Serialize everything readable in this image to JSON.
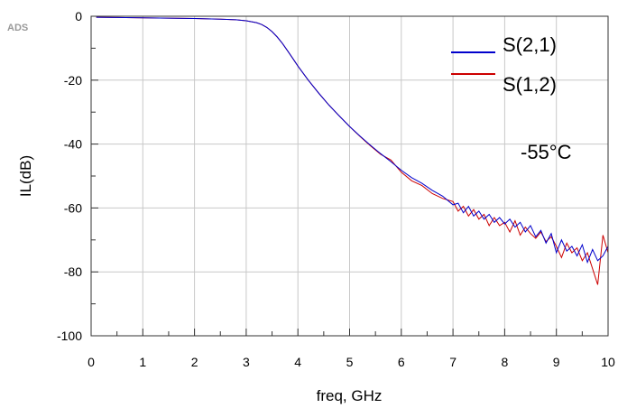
{
  "watermark": "ADS",
  "chart_data": {
    "type": "line",
    "xlabel": "freq, GHz",
    "ylabel": "IL(dB)",
    "xlim": [
      0,
      10
    ],
    "ylim": [
      -100,
      0
    ],
    "x_ticks": [
      0,
      1,
      2,
      3,
      4,
      5,
      6,
      7,
      8,
      9,
      10
    ],
    "y_ticks": [
      0,
      -20,
      -40,
      -60,
      -80,
      -100
    ],
    "grid": true,
    "legend_position": "top-right",
    "annotation": "-55°C",
    "series": [
      {
        "name": "S(2,1)",
        "color": "#0000cc",
        "x": [
          0.1,
          0.5,
          1.0,
          1.5,
          2.0,
          2.5,
          2.8,
          3.0,
          3.2,
          3.3,
          3.4,
          3.5,
          3.6,
          3.7,
          3.8,
          3.9,
          4.0,
          4.2,
          4.4,
          4.6,
          4.8,
          5.0,
          5.2,
          5.4,
          5.6,
          5.8,
          6.0,
          6.2,
          6.4,
          6.6,
          6.8,
          7.0,
          7.1,
          7.2,
          7.3,
          7.4,
          7.5,
          7.6,
          7.7,
          7.8,
          7.9,
          8.0,
          8.1,
          8.2,
          8.3,
          8.4,
          8.5,
          8.6,
          8.7,
          8.8,
          8.9,
          9.0,
          9.1,
          9.2,
          9.3,
          9.4,
          9.5,
          9.6,
          9.7,
          9.8,
          9.9,
          10.0
        ],
        "values": [
          -0.3,
          -0.4,
          -0.5,
          -0.6,
          -0.7,
          -0.9,
          -1.1,
          -1.4,
          -2.0,
          -2.6,
          -3.5,
          -4.8,
          -6.5,
          -8.5,
          -10.8,
          -13.2,
          -15.6,
          -20.0,
          -24.0,
          -27.8,
          -31.2,
          -34.5,
          -37.5,
          -40.3,
          -43.0,
          -45.5,
          -48.2,
          -50.5,
          -52.3,
          -54.5,
          -56.3,
          -59.0,
          -58.5,
          -61.5,
          -59.5,
          -62.5,
          -61.0,
          -63.5,
          -62.0,
          -64.5,
          -63.0,
          -65.0,
          -63.5,
          -66.0,
          -64.5,
          -67.5,
          -65.5,
          -69.0,
          -67.0,
          -71.0,
          -68.0,
          -74.0,
          -70.0,
          -73.5,
          -72.0,
          -75.0,
          -71.5,
          -77.0,
          -73.0,
          -76.5,
          -75.0,
          -72.0
        ]
      },
      {
        "name": "S(1,2)",
        "color": "#cc0000",
        "x": [
          0.1,
          0.5,
          1.0,
          1.5,
          2.0,
          2.5,
          2.8,
          3.0,
          3.2,
          3.3,
          3.4,
          3.5,
          3.6,
          3.7,
          3.8,
          3.9,
          4.0,
          4.2,
          4.4,
          4.6,
          4.8,
          5.0,
          5.2,
          5.4,
          5.6,
          5.8,
          6.0,
          6.2,
          6.4,
          6.6,
          6.8,
          7.0,
          7.1,
          7.2,
          7.3,
          7.4,
          7.5,
          7.6,
          7.7,
          7.8,
          7.9,
          8.0,
          8.1,
          8.2,
          8.3,
          8.4,
          8.5,
          8.6,
          8.7,
          8.8,
          8.9,
          9.0,
          9.1,
          9.2,
          9.3,
          9.4,
          9.5,
          9.6,
          9.7,
          9.8,
          9.9,
          10.0
        ],
        "values": [
          -0.3,
          -0.4,
          -0.5,
          -0.6,
          -0.7,
          -0.9,
          -1.1,
          -1.4,
          -2.0,
          -2.6,
          -3.5,
          -4.8,
          -6.5,
          -8.5,
          -10.8,
          -13.2,
          -15.6,
          -20.0,
          -24.0,
          -27.8,
          -31.2,
          -34.5,
          -37.6,
          -40.5,
          -43.2,
          -45.0,
          -48.8,
          -51.5,
          -53.0,
          -55.5,
          -57.0,
          -58.0,
          -61.0,
          -59.5,
          -62.5,
          -60.5,
          -63.5,
          -62.0,
          -65.5,
          -63.0,
          -65.5,
          -64.5,
          -67.5,
          -64.0,
          -68.5,
          -66.0,
          -68.0,
          -69.5,
          -67.5,
          -70.5,
          -69.0,
          -72.0,
          -75.5,
          -71.0,
          -74.0,
          -72.5,
          -76.5,
          -74.0,
          -79.0,
          -84.0,
          -68.5,
          -74.0
        ]
      }
    ]
  }
}
